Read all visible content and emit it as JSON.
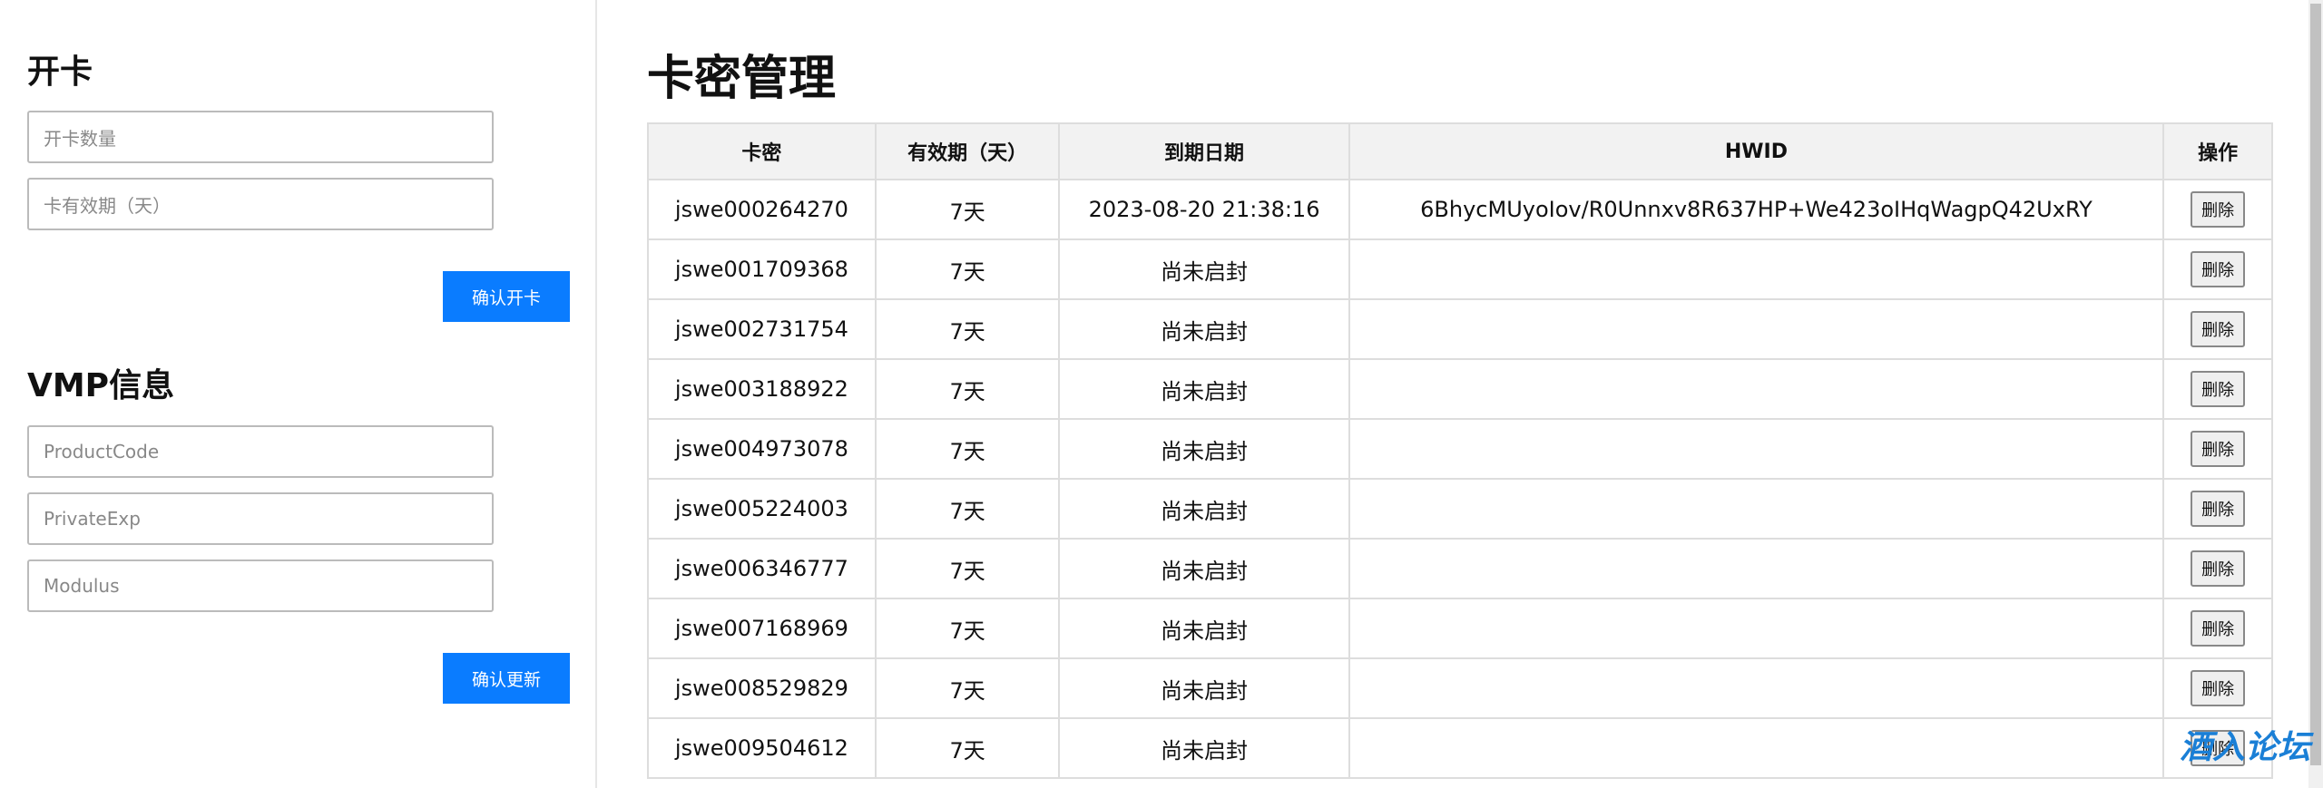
{
  "left_panel": {
    "open_card": {
      "title": "开卡",
      "inputs": [
        "开卡数量",
        "卡有效期（天）"
      ],
      "button": "确认开卡"
    },
    "vmp": {
      "title": "VMP信息",
      "inputs": [
        "ProductCode",
        "PrivateExp",
        "Modulus"
      ],
      "button": "确认更新"
    }
  },
  "main": {
    "title": "卡密管理",
    "table": {
      "headers": [
        "卡密",
        "有效期（天）",
        "到期日期",
        "HWID",
        "操作"
      ],
      "rows": [
        [
          "jswe000264270",
          "7天",
          "2023-08-20 21:38:16",
          "6BhycMUyoIov/R0Unnxv8R637HP+We423oIHqWagpQ42UxRY",
          "删除"
        ],
        [
          "jswe001709368",
          "7天",
          "尚未启封",
          null,
          "删除"
        ],
        [
          "jswe002731754",
          "7天",
          "尚未启封",
          null,
          "删除"
        ],
        [
          "jswe003188922",
          "7天",
          "尚未启封",
          null,
          "删除"
        ],
        [
          "jswe004973078",
          "7天",
          "尚未启封",
          null,
          "删除"
        ],
        [
          "jswe005224003",
          "7天",
          "尚未启封",
          null,
          "删除"
        ],
        [
          "jswe006346777",
          "7天",
          "尚未启封",
          null,
          "删除"
        ],
        [
          "jswe007168969",
          "7天",
          "尚未启封",
          null,
          "删除"
        ],
        [
          "jswe008529829",
          "7天",
          "尚未启封",
          null,
          "删除"
        ],
        [
          "jswe009504612",
          "7天",
          "尚未启封",
          null,
          "删除"
        ]
      ]
    }
  },
  "watermark": "酒入论坛"
}
